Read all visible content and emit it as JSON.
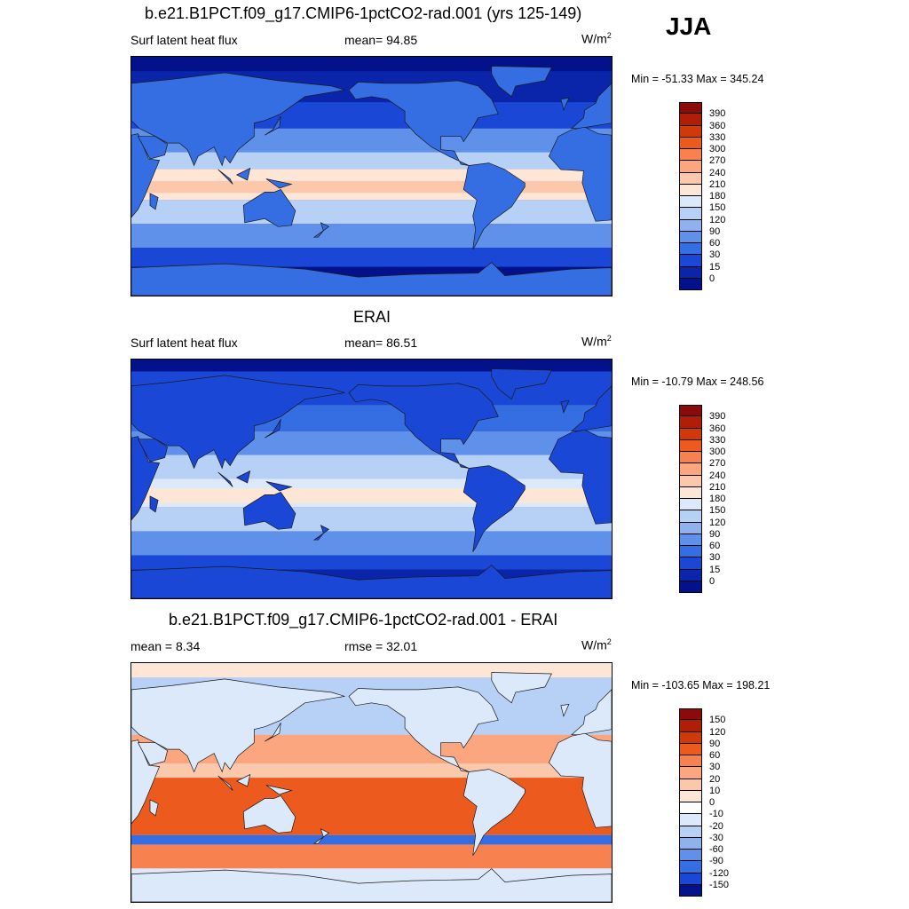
{
  "season": "JJA",
  "panels": [
    {
      "title": "b.e21.B1PCT.f09_g17.CMIP6-1pctCO2-rad.001 (yrs 125-149)",
      "left_label": "Surf latent heat flux",
      "stat_label": "mean=  94.85",
      "units": "W/m",
      "units_sup": "2",
      "minmax": "Min = -51.33 Max = 345.24",
      "colorbar": {
        "labels": [
          "390",
          "360",
          "330",
          "300",
          "270",
          "240",
          "210",
          "180",
          "150",
          "120",
          "90",
          "60",
          "30",
          "15",
          "0"
        ],
        "colors": [
          "#8b0a0a",
          "#b01e08",
          "#d03a0a",
          "#ec5a1e",
          "#f7824f",
          "#fba67e",
          "#fcc8ab",
          "#fde6d6",
          "#dce9fb",
          "#b7d0f6",
          "#8fb2ef",
          "#6091ea",
          "#346ee2",
          "#1a47d6",
          "#0a25aa",
          "#03128a"
        ]
      },
      "map_field": "model"
    },
    {
      "title": "ERAI",
      "left_label": "Surf latent heat flux",
      "stat_label": "mean=  86.51",
      "units": "W/m",
      "units_sup": "2",
      "minmax": "Min = -10.79 Max = 248.56",
      "colorbar": {
        "labels": [
          "390",
          "360",
          "330",
          "300",
          "270",
          "240",
          "210",
          "180",
          "150",
          "120",
          "90",
          "60",
          "30",
          "15",
          "0"
        ],
        "colors": [
          "#8b0a0a",
          "#b01e08",
          "#d03a0a",
          "#ec5a1e",
          "#f7824f",
          "#fba67e",
          "#fcc8ab",
          "#fde6d6",
          "#dce9fb",
          "#b7d0f6",
          "#8fb2ef",
          "#6091ea",
          "#346ee2",
          "#1a47d6",
          "#0a25aa",
          "#03128a"
        ]
      },
      "map_field": "obs"
    },
    {
      "title": "b.e21.B1PCT.f09_g17.CMIP6-1pctCO2-rad.001 - ERAI",
      "left_label": "mean =   8.34",
      "stat_label": "rmse =  32.01",
      "units": "W/m",
      "units_sup": "2",
      "minmax": "Min = -103.65 Max = 198.21",
      "colorbar": {
        "labels": [
          "150",
          "120",
          "90",
          "60",
          "30",
          "20",
          "10",
          "0",
          "-10",
          "-20",
          "-30",
          "-60",
          "-90",
          "-120",
          "-150"
        ],
        "colors": [
          "#8b0a0a",
          "#b01e08",
          "#d03a0a",
          "#ec5a1e",
          "#f7824f",
          "#fba67e",
          "#fcc8ab",
          "#fde6d6",
          "#ffffff",
          "#dce9fb",
          "#b7d0f6",
          "#8fb2ef",
          "#6091ea",
          "#346ee2",
          "#1a47d6",
          "#03128a"
        ]
      },
      "map_field": "diff"
    }
  ]
}
